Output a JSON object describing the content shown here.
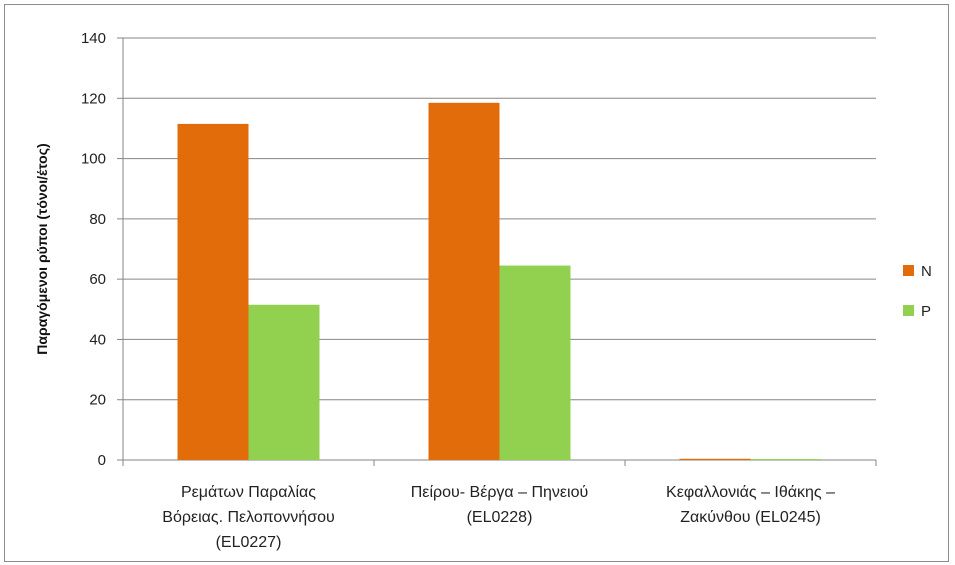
{
  "chart_data": {
    "type": "bar",
    "title": "",
    "xlabel": "",
    "ylabel": "Παραγόμενοι ρύποι (τόνοι/έτος)",
    "ylim": [
      0,
      140
    ],
    "yticks": [
      0,
      20,
      40,
      60,
      80,
      100,
      120,
      140
    ],
    "grid": true,
    "legend_position": "right",
    "categories": [
      [
        "Ρεμάτων Παραλίας",
        "Βόρειας. Πελοποννήσου",
        "(EL0227)"
      ],
      [
        "Πείρου- Βέργα – Πηνειού",
        "(EL0228)"
      ],
      [
        "Κεφαλλονιάς – Ιθάκης –",
        "Ζακύνθου (EL0245)"
      ]
    ],
    "series": [
      {
        "name": "N",
        "color": "#e36c0a",
        "values": [
          111.5,
          118.5,
          0.4
        ]
      },
      {
        "name": "P",
        "color": "#92d050",
        "values": [
          51.5,
          64.5,
          0.3
        ]
      }
    ]
  }
}
